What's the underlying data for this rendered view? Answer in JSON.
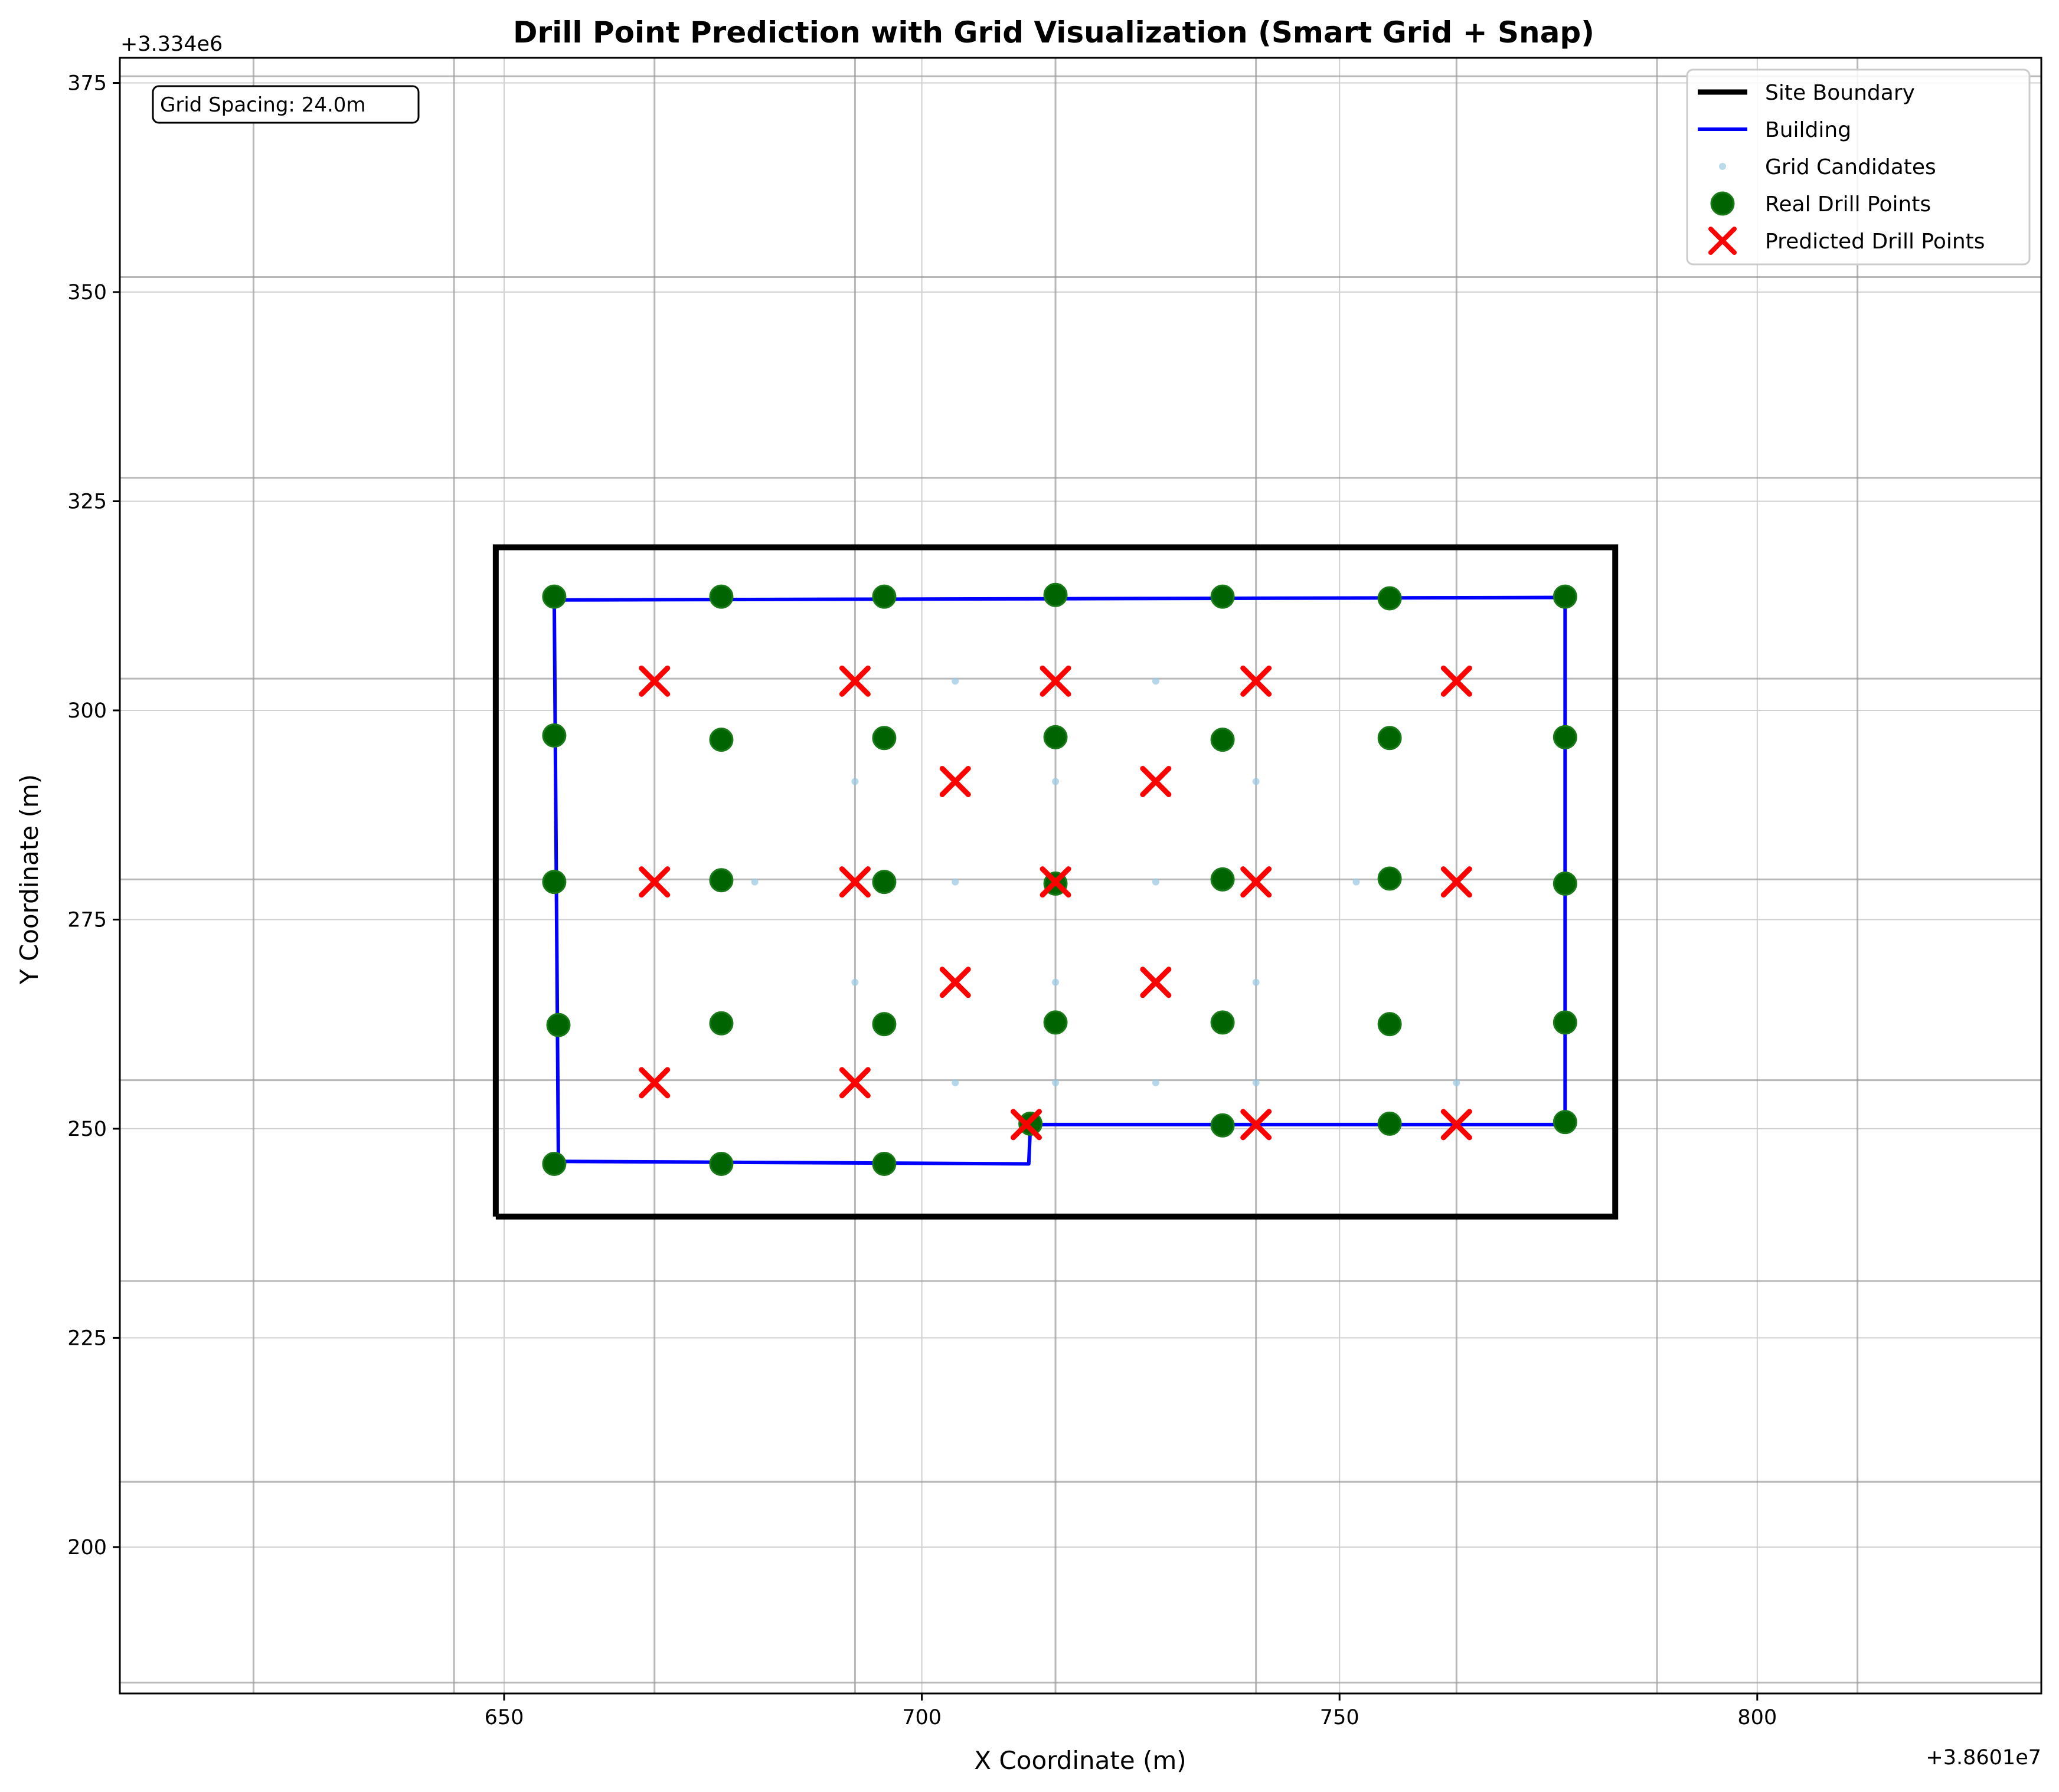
{
  "chart_data": {
    "type": "scatter",
    "title": "Drill Point Prediction with Grid Visualization (Smart Grid + Snap)",
    "xlabel": "X Coordinate (m)",
    "ylabel": "Y Coordinate (m)",
    "x_offset_label": "+3.8601e7",
    "y_offset_label": "+3.334e6",
    "xlim": [
      604,
      834
    ],
    "ylim": [
      182.5,
      378
    ],
    "x_ticks": [
      650,
      700,
      750,
      800
    ],
    "y_ticks": [
      200,
      225,
      250,
      275,
      300,
      325,
      350,
      375
    ],
    "grid": true,
    "legend_position": "top-right",
    "annotation": "Grid Spacing: 24.0m",
    "colors": {
      "site_boundary": "#000000",
      "building": "#0000ff",
      "grid_candidates": "#9ecae1",
      "real_drill_points": "#006400",
      "predicted_drill_points": "#ff0000"
    },
    "grid_lines": {
      "x": [
        620,
        644,
        668,
        692,
        716,
        740,
        764,
        788,
        812
      ],
      "y": [
        183.8,
        207.8,
        231.8,
        255.8,
        279.8,
        303.8,
        327.8,
        351.8,
        375.8
      ]
    },
    "series": [
      {
        "name": "Site Boundary",
        "kind": "line",
        "points": [
          [
            649,
            239.5
          ],
          [
            783,
            239.5
          ],
          [
            783,
            319.5
          ],
          [
            649,
            319.5
          ],
          [
            649,
            239.5
          ]
        ]
      },
      {
        "name": "Building",
        "kind": "line",
        "points": [
          [
            656,
            313.2
          ],
          [
            777,
            313.5
          ],
          [
            777,
            250.5
          ],
          [
            713,
            250.5
          ],
          [
            712.8,
            245.8
          ],
          [
            656.5,
            246.1
          ],
          [
            656,
            313.2
          ]
        ]
      },
      {
        "name": "Grid Candidates",
        "kind": "scatter",
        "points": [
          [
            704,
            303.5
          ],
          [
            728,
            303.5
          ],
          [
            692,
            291.5
          ],
          [
            716,
            291.5
          ],
          [
            740,
            291.5
          ],
          [
            680,
            279.5
          ],
          [
            704,
            279.5
          ],
          [
            728,
            279.5
          ],
          [
            752,
            279.5
          ],
          [
            692,
            267.5
          ],
          [
            716,
            267.5
          ],
          [
            740,
            267.5
          ],
          [
            704,
            255.5
          ],
          [
            716,
            255.5
          ],
          [
            728,
            255.5
          ],
          [
            740,
            255.5
          ],
          [
            764,
            255.5
          ]
        ]
      },
      {
        "name": "Real Drill Points",
        "kind": "scatter",
        "points": [
          [
            656,
            313.6
          ],
          [
            676,
            313.6
          ],
          [
            695.5,
            313.6
          ],
          [
            716,
            313.8
          ],
          [
            736,
            313.6
          ],
          [
            756,
            313.4
          ],
          [
            777,
            313.6
          ],
          [
            656,
            297
          ],
          [
            676,
            296.5
          ],
          [
            695.5,
            296.7
          ],
          [
            716,
            296.8
          ],
          [
            736,
            296.5
          ],
          [
            756,
            296.7
          ],
          [
            777,
            296.8
          ],
          [
            656,
            279.5
          ],
          [
            676,
            279.7
          ],
          [
            695.5,
            279.5
          ],
          [
            716,
            279.3
          ],
          [
            736,
            279.8
          ],
          [
            756,
            279.9
          ],
          [
            777,
            279.3
          ],
          [
            656.5,
            262.4
          ],
          [
            676,
            262.6
          ],
          [
            695.5,
            262.5
          ],
          [
            716,
            262.7
          ],
          [
            736,
            262.7
          ],
          [
            756,
            262.5
          ],
          [
            777,
            262.7
          ],
          [
            656,
            245.8
          ],
          [
            676,
            245.8
          ],
          [
            695.5,
            245.8
          ],
          [
            713,
            250.6
          ],
          [
            736,
            250.4
          ],
          [
            756,
            250.6
          ],
          [
            777,
            250.8
          ]
        ]
      },
      {
        "name": "Predicted Drill Points",
        "kind": "scatter",
        "points": [
          [
            668,
            303.5
          ],
          [
            692,
            303.5
          ],
          [
            716,
            303.5
          ],
          [
            740,
            303.5
          ],
          [
            764,
            303.5
          ],
          [
            704,
            291.5
          ],
          [
            728,
            291.5
          ],
          [
            668,
            279.5
          ],
          [
            692,
            279.5
          ],
          [
            716,
            279.5
          ],
          [
            740,
            279.5
          ],
          [
            764,
            279.5
          ],
          [
            704,
            267.5
          ],
          [
            728,
            267.5
          ],
          [
            668,
            255.5
          ],
          [
            692,
            255.5
          ],
          [
            712.5,
            250.5
          ],
          [
            740,
            250.5
          ],
          [
            764,
            250.5
          ]
        ]
      }
    ]
  }
}
